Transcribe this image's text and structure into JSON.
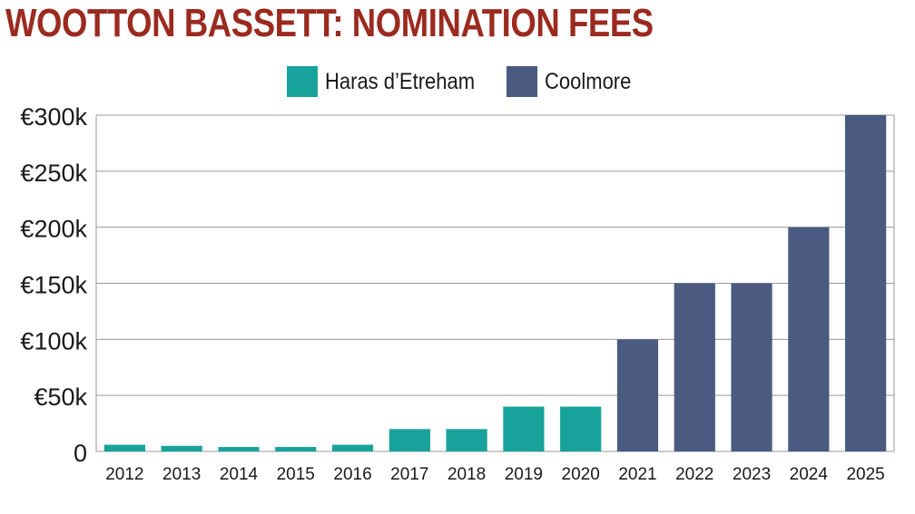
{
  "chart_data": {
    "type": "bar",
    "title": "WOOTTON BASSETT: NOMINATION FEES",
    "title_color": "#9b2a1f",
    "categories": [
      "2012",
      "2013",
      "2014",
      "2015",
      "2016",
      "2017",
      "2018",
      "2019",
      "2020",
      "2021",
      "2022",
      "2023",
      "2024",
      "2025"
    ],
    "values": [
      6000,
      5000,
      4000,
      4000,
      6000,
      20000,
      20000,
      40000,
      40000,
      100000,
      150000,
      150000,
      200000,
      300000
    ],
    "studs": [
      0,
      0,
      0,
      0,
      0,
      0,
      0,
      0,
      0,
      1,
      1,
      1,
      1,
      1
    ],
    "series": [
      {
        "name": "Haras d’Etreham",
        "color": "#17a39b"
      },
      {
        "name": "Coolmore",
        "color": "#4a5a80"
      }
    ],
    "ylim": [
      0,
      300000
    ],
    "yticks": [
      0,
      50000,
      100000,
      150000,
      200000,
      250000,
      300000
    ],
    "ytick_labels": [
      "0",
      "€50k",
      "€100k",
      "€150k",
      "€200k",
      "€250k",
      "€300k"
    ],
    "xlabel": "",
    "ylabel": "",
    "grid": true,
    "legend_position": "top-center"
  }
}
